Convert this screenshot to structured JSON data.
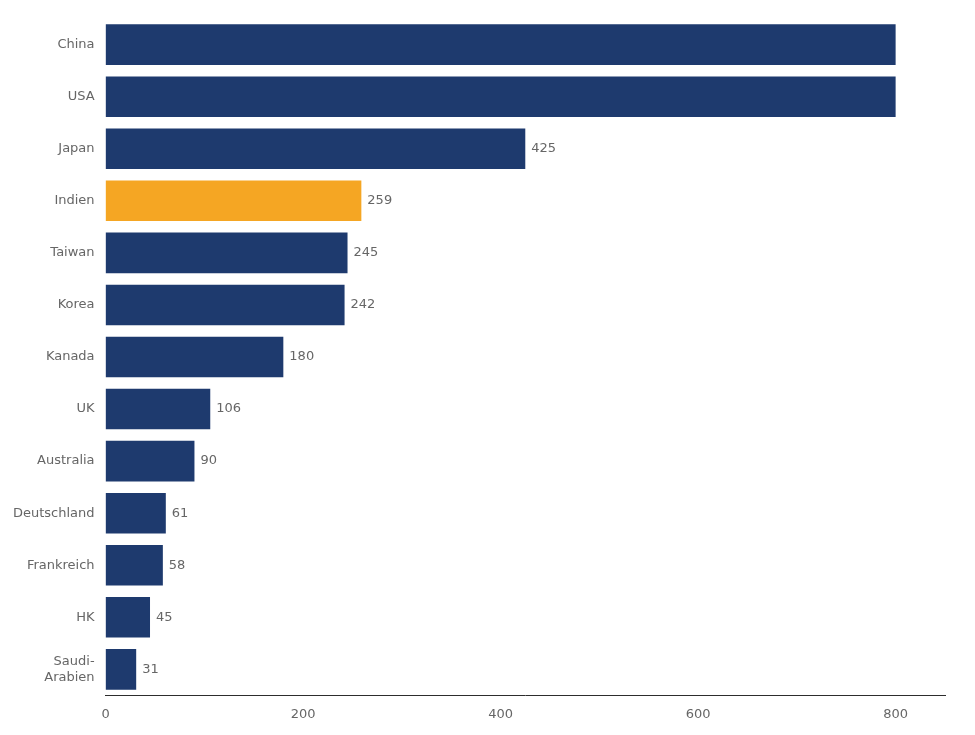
{
  "chart_data": {
    "type": "bar",
    "orientation": "horizontal",
    "categories": [
      "China",
      "USA",
      "Japan",
      "Indien",
      "Taiwan",
      "Korea",
      "Kanada",
      "UK",
      "Australia",
      "Deutschland",
      "Frankreich",
      "HK",
      "Saudi-\nArabien"
    ],
    "values": [
      800,
      800,
      425,
      259,
      245,
      242,
      180,
      106,
      90,
      61,
      58,
      45,
      31
    ],
    "value_labels": [
      null,
      null,
      "425",
      "259",
      "245",
      "242",
      "180",
      "106",
      "90",
      "61",
      "58",
      "45",
      "31"
    ],
    "colors": [
      "#1e3a6e",
      "#1e3a6e",
      "#1e3a6e",
      "#f5a623",
      "#1e3a6e",
      "#1e3a6e",
      "#1e3a6e",
      "#1e3a6e",
      "#1e3a6e",
      "#1e3a6e",
      "#1e3a6e",
      "#1e3a6e",
      "#1e3a6e"
    ],
    "xlim": [
      0,
      850
    ],
    "xticks": [
      0,
      200,
      400,
      600,
      800
    ],
    "data_labels": true,
    "grid": false
  }
}
